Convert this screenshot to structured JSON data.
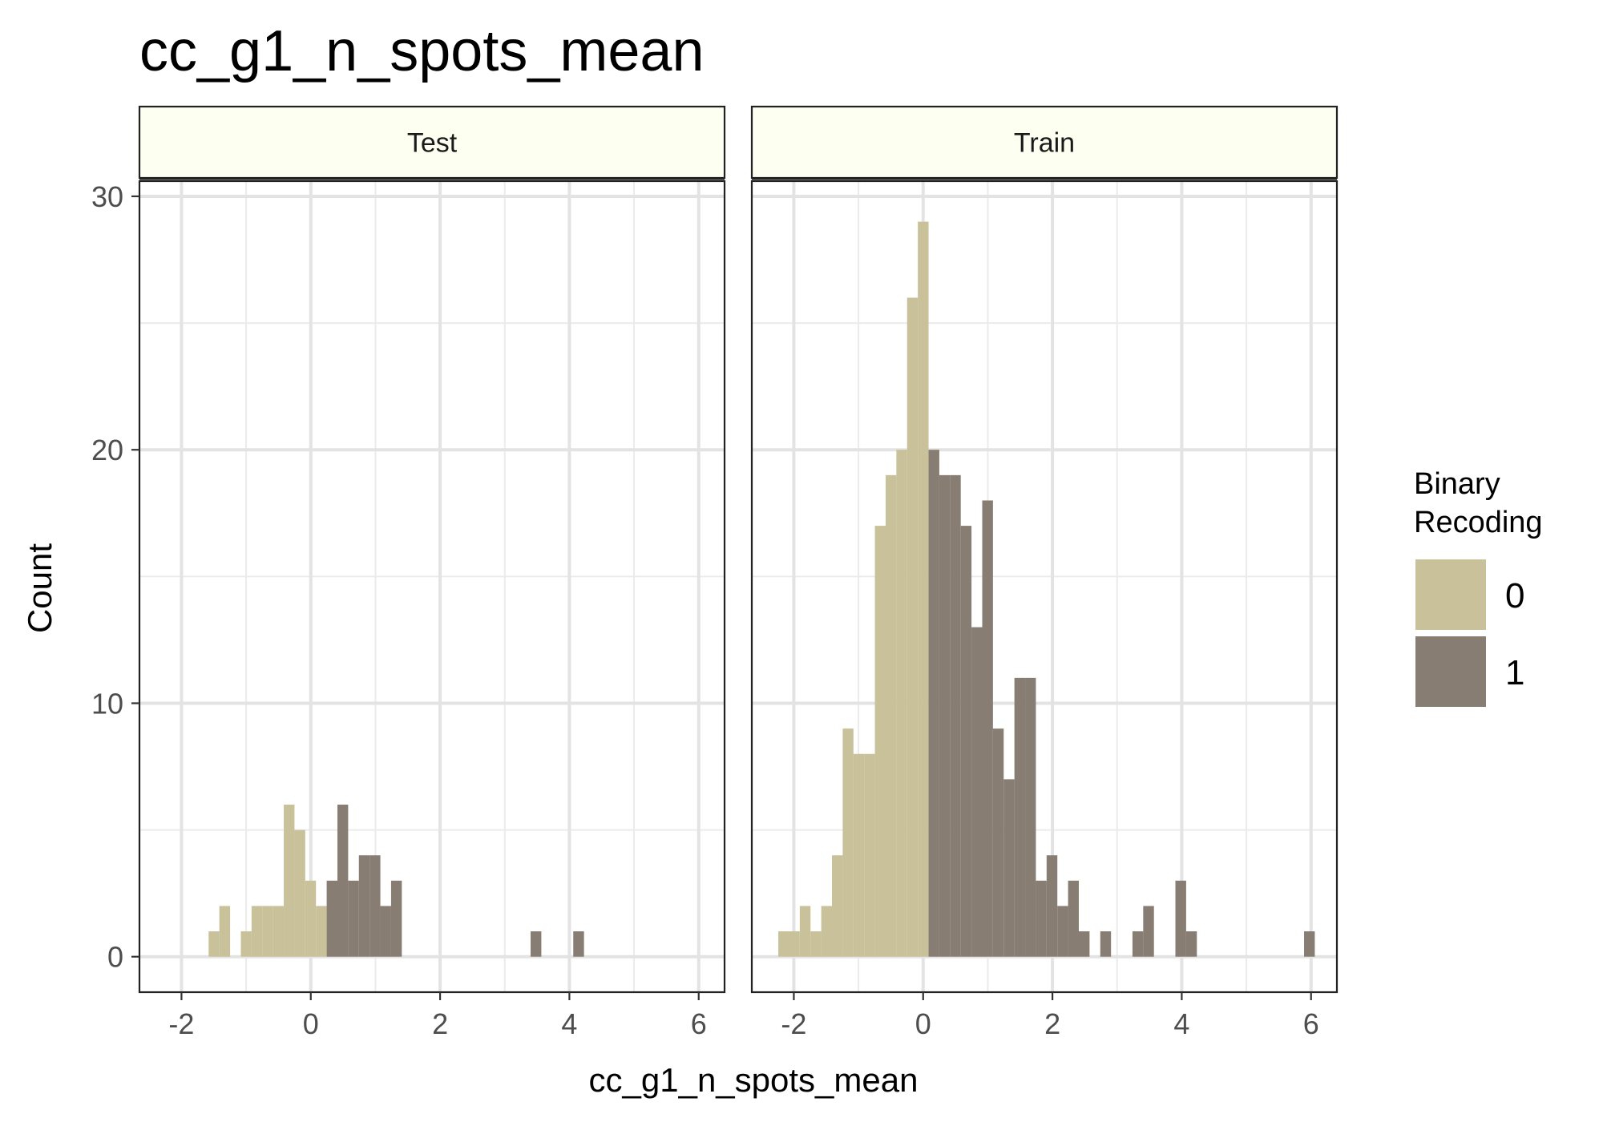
{
  "chart_data": {
    "type": "histogram",
    "title": "cc_g1_n_spots_mean",
    "xlabel": "cc_g1_n_spots_mean",
    "ylabel": "Count",
    "xlim": [
      -2.65,
      6.4
    ],
    "ylim": [
      -1.4,
      30.6
    ],
    "x_ticks": [
      -2,
      0,
      2,
      4,
      6
    ],
    "x_tick_labels": [
      "-2",
      "0",
      "2",
      "4",
      "6"
    ],
    "y_ticks": [
      0,
      10,
      20,
      30
    ],
    "y_tick_labels": [
      "0",
      "10",
      "20",
      "30"
    ],
    "grid": true,
    "bin_width": 0.166,
    "legend": {
      "title": "Binary Recoding",
      "title_lines": [
        "Binary",
        "Recoding"
      ],
      "position": "right",
      "entries": [
        {
          "label": "0",
          "color": "#c8c19a"
        },
        {
          "label": "1",
          "color": "#877d72"
        }
      ]
    },
    "panels": [
      {
        "label": "Test",
        "series": [
          {
            "name": "0",
            "color": "#c8c19a",
            "x_start": [
              -1.58,
              -1.414,
              -1.082,
              -0.916,
              -0.75,
              -0.584,
              -0.418,
              -0.252,
              -0.086,
              0.08
            ],
            "values": [
              1,
              2,
              1,
              2,
              2,
              2,
              6,
              5,
              3,
              2
            ]
          },
          {
            "name": "1",
            "color": "#877d72",
            "x_start": [
              0.246,
              0.412,
              0.578,
              0.744,
              0.91,
              1.076,
              1.242,
              3.4,
              4.06
            ],
            "values": [
              3,
              6,
              3,
              4,
              4,
              2,
              3,
              1,
              1
            ]
          }
        ]
      },
      {
        "label": "Train",
        "series": [
          {
            "name": "0",
            "color": "#c8c19a",
            "x_start": [
              -2.24,
              -2.074,
              -1.908,
              -1.742,
              -1.576,
              -1.41,
              -1.244,
              -1.078,
              -0.912,
              -0.746,
              -0.58,
              -0.414,
              -0.248,
              -0.082
            ],
            "values": [
              1,
              1,
              2,
              1,
              2,
              4,
              9,
              8,
              8,
              17,
              19,
              20,
              26,
              29
            ]
          },
          {
            "name": "1",
            "color": "#877d72",
            "x_start": [
              0.084,
              0.25,
              0.416,
              0.582,
              0.748,
              0.914,
              1.08,
              1.246,
              1.412,
              1.578,
              1.744,
              1.91,
              2.076,
              2.242,
              2.408,
              2.74,
              3.238,
              3.404,
              3.902,
              4.068,
              5.892
            ],
            "values": [
              20,
              19,
              19,
              17,
              13,
              18,
              9,
              7,
              11,
              11,
              3,
              4,
              2,
              3,
              1,
              1,
              1,
              2,
              3,
              1,
              1
            ]
          }
        ]
      }
    ]
  }
}
